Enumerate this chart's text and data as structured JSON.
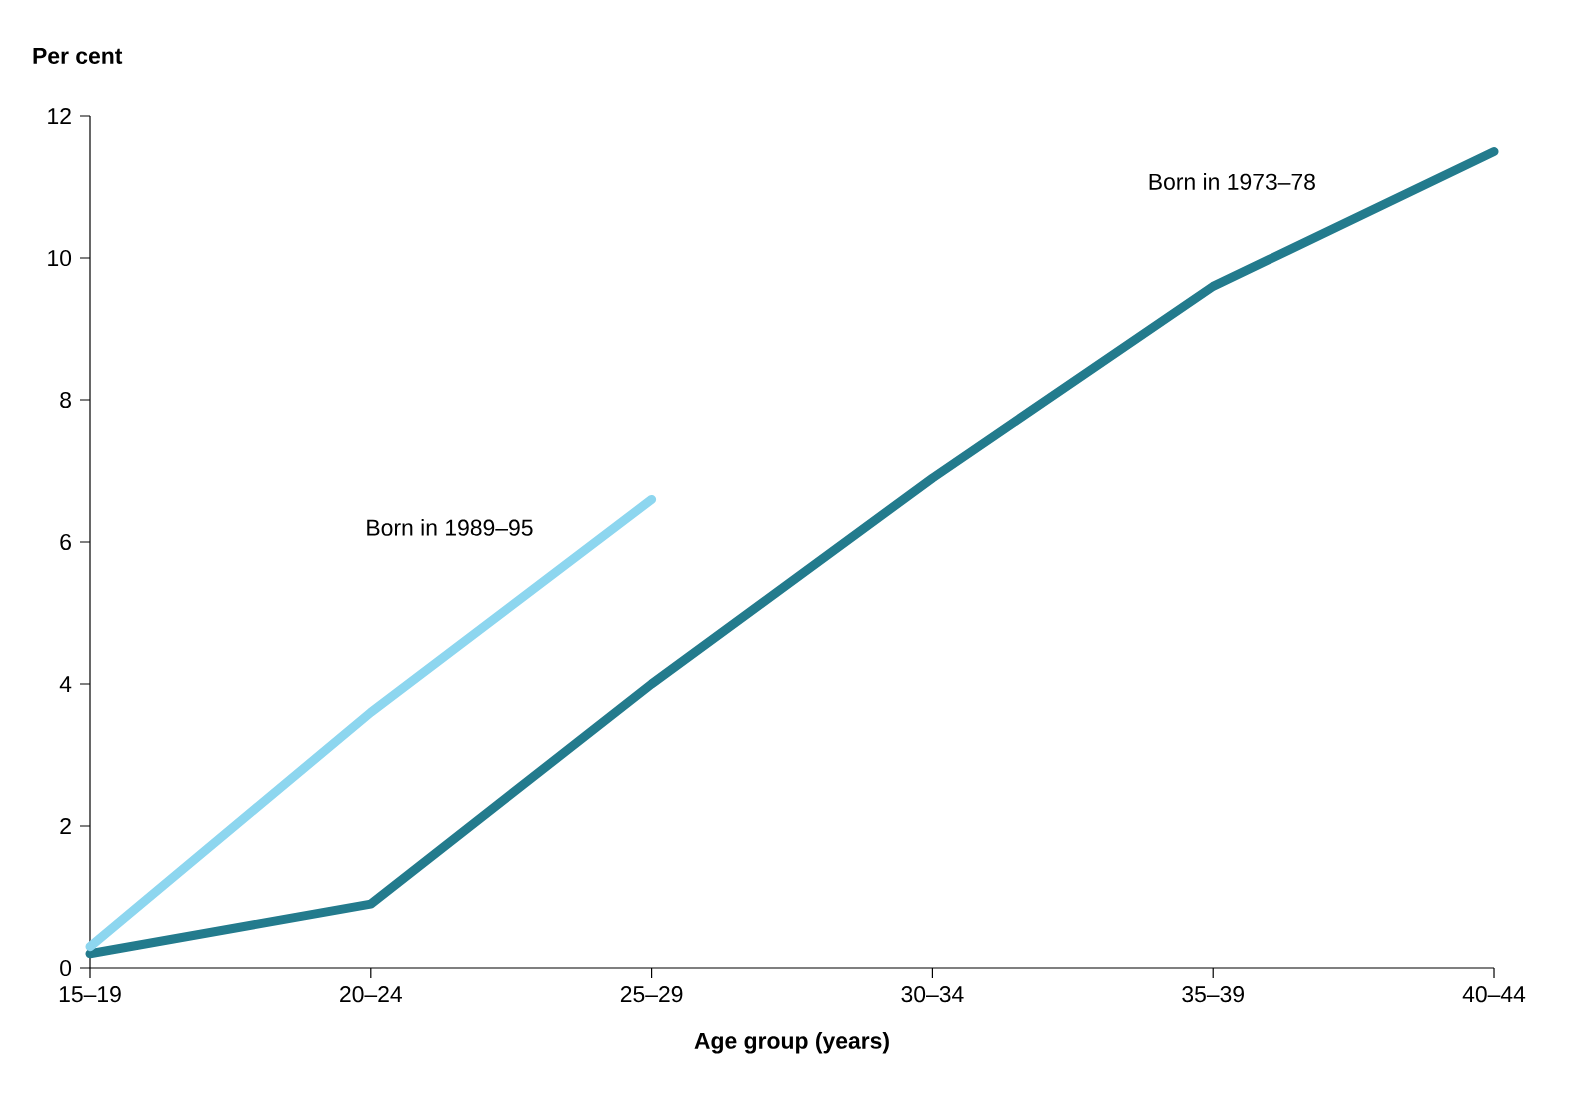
{
  "chart_data": {
    "type": "line",
    "xlabel": "Age group (years)",
    "ylabel": "Per cent",
    "categories": [
      "15–19",
      "20–24",
      "25–29",
      "30–34",
      "35–39",
      "40–44"
    ],
    "series": [
      {
        "name": "Born in 1973–78",
        "color": "#237b8d",
        "values": [
          0.2,
          0.9,
          4.0,
          6.9,
          9.6,
          11.5
        ]
      },
      {
        "name": "Born in 1989–95",
        "color": "#8dd6ef",
        "values": [
          0.3,
          3.6,
          6.6,
          null,
          null,
          null
        ]
      }
    ],
    "ylim": [
      0,
      12
    ],
    "yticks": [
      0,
      2,
      4,
      6,
      8,
      10,
      12
    ],
    "grid": false,
    "legend": false,
    "marker": "none",
    "line_style": "solid"
  }
}
